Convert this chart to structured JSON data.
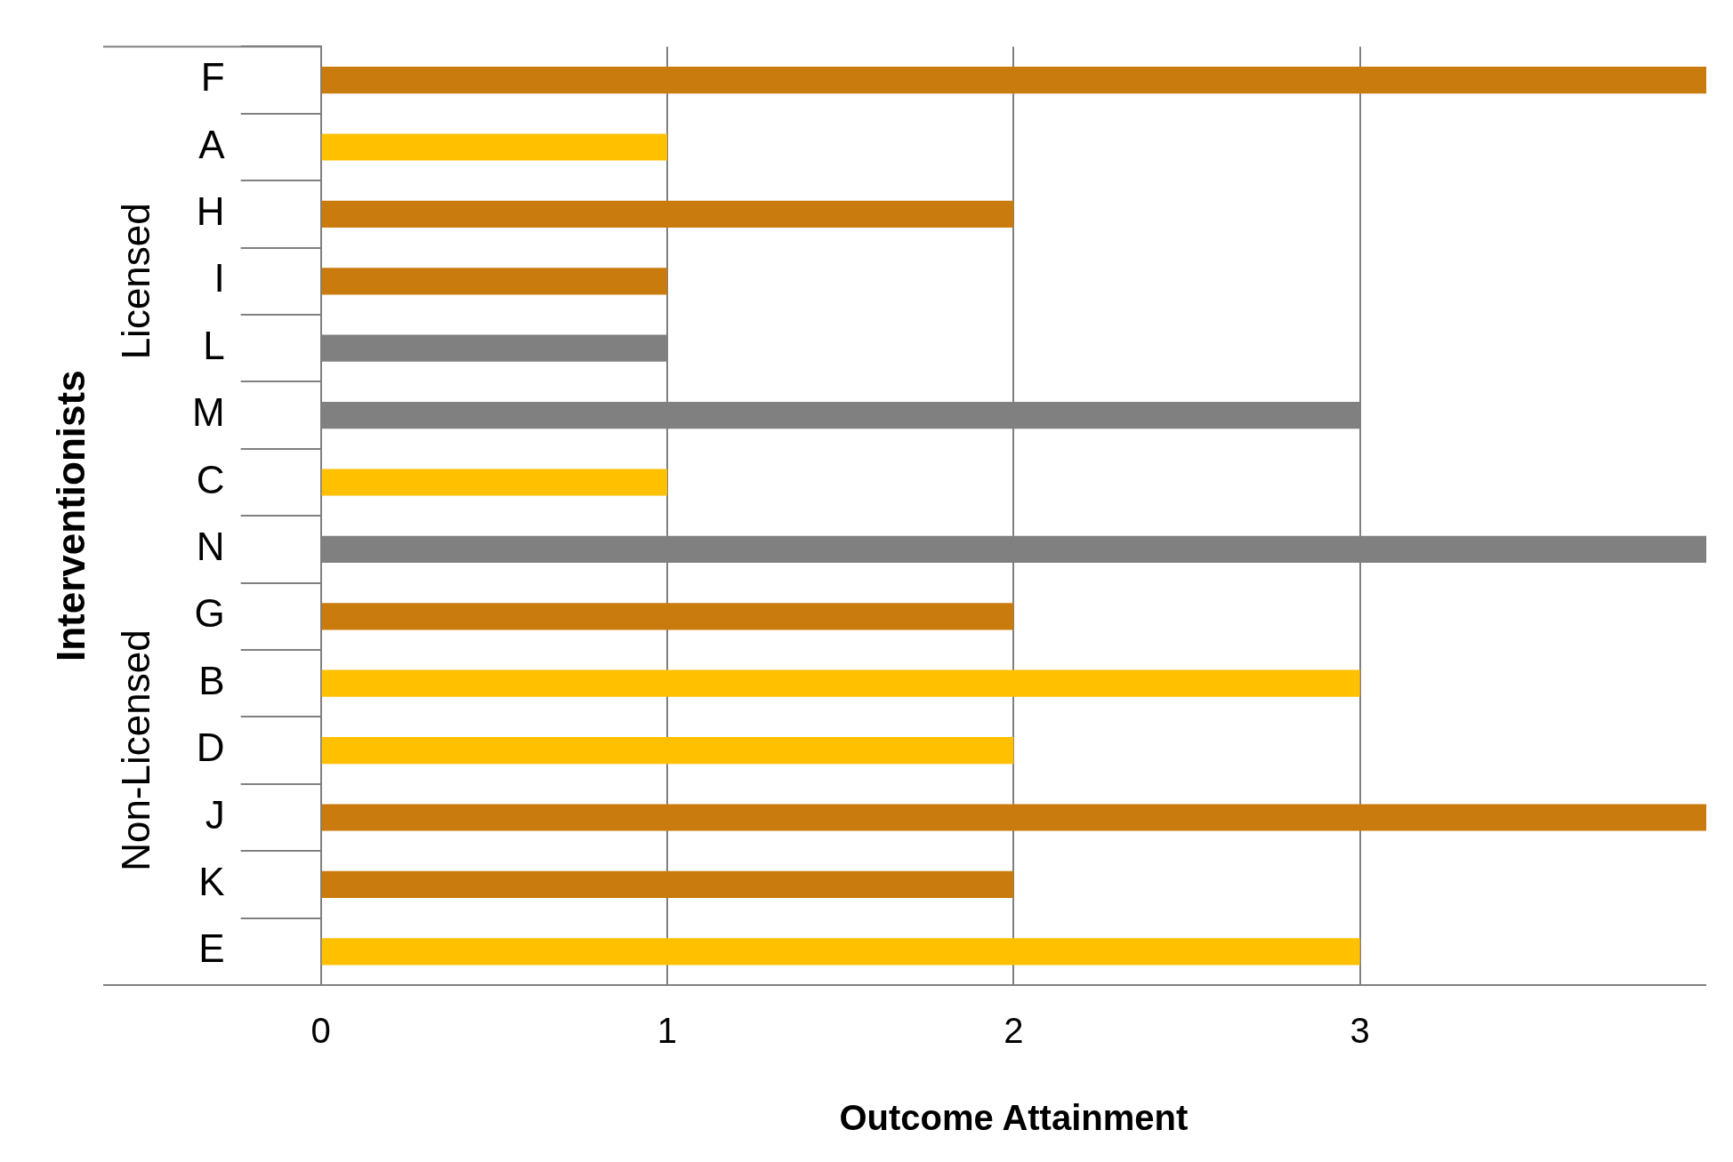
{
  "chart_data": {
    "type": "bar",
    "orientation": "horizontal",
    "xlabel": "Outcome Attainment",
    "ylabel": "Interventionists",
    "categories": [
      "F",
      "A",
      "H",
      "I",
      "L",
      "M",
      "C",
      "N",
      "G",
      "B",
      "D",
      "J",
      "K",
      "E"
    ],
    "values": [
      4,
      1,
      2,
      1,
      1,
      3,
      1,
      4,
      2,
      3,
      2,
      4,
      2,
      3
    ],
    "colors": [
      "#c97b0e",
      "#ffc000",
      "#c97b0e",
      "#c97b0e",
      "#808080",
      "#808080",
      "#ffc000",
      "#808080",
      "#c97b0e",
      "#ffc000",
      "#ffc000",
      "#c97b0e",
      "#c97b0e",
      "#ffc000"
    ],
    "xlim": [
      0,
      4
    ],
    "xticks": [
      0,
      1,
      2,
      3
    ],
    "grid": "x",
    "legend": false,
    "annotations": [
      "Licensed",
      "Non-Licensed"
    ]
  }
}
